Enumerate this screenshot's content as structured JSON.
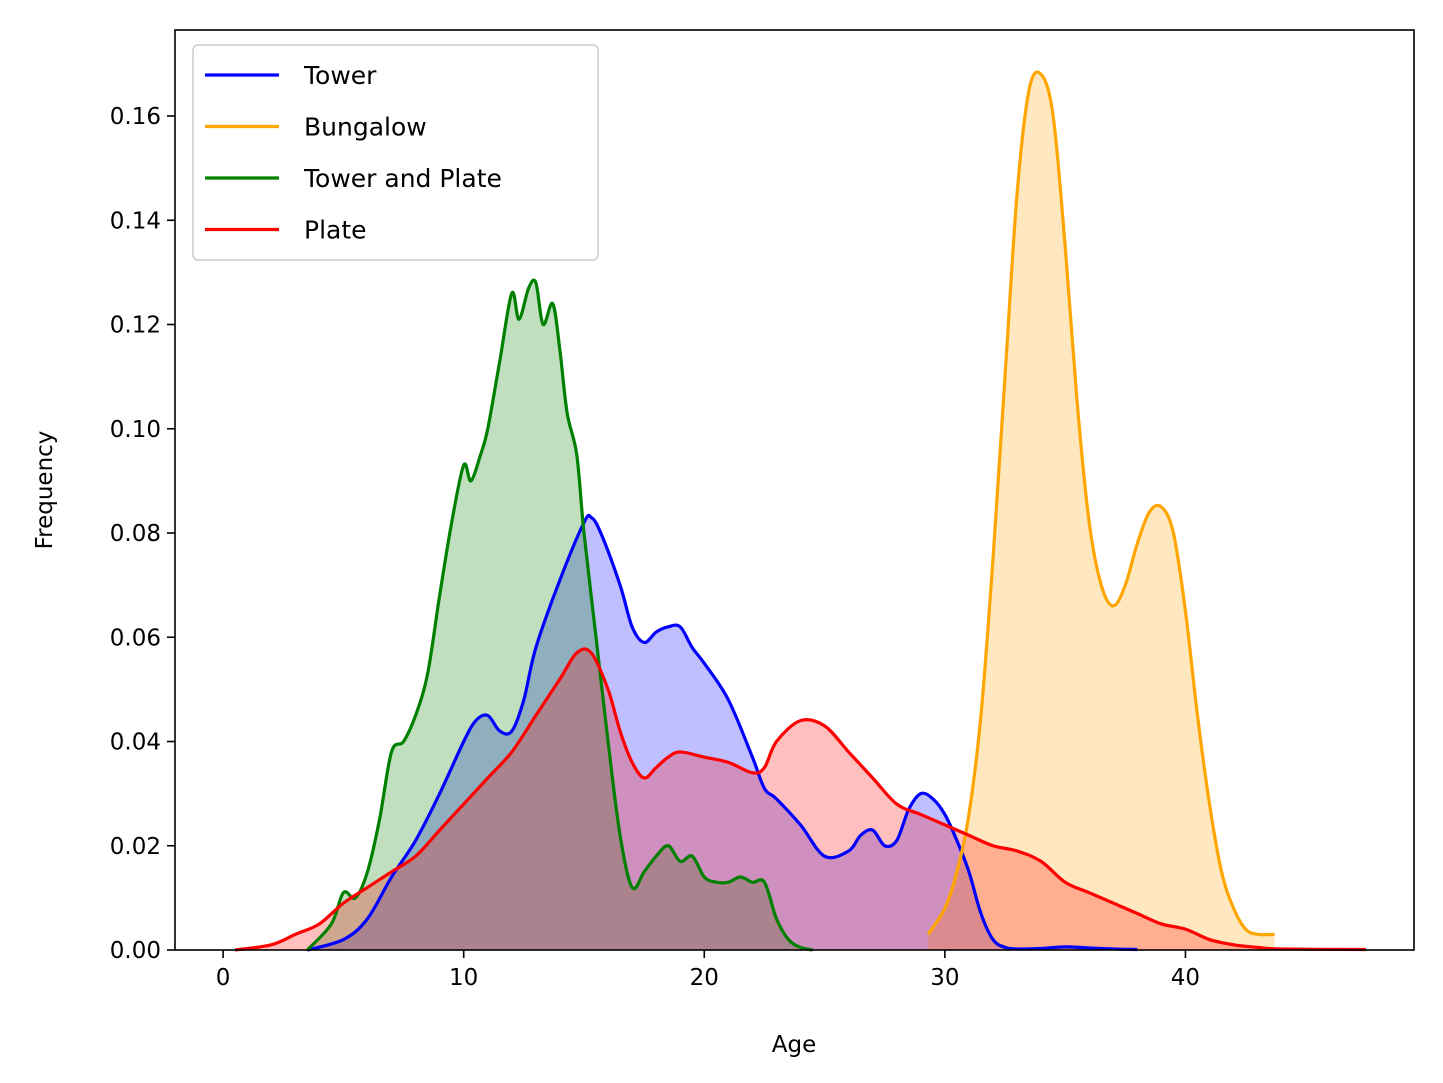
{
  "chart_data": {
    "type": "area",
    "title": "",
    "xlabel": "Age",
    "ylabel": "Frequency",
    "xlim": [
      -2,
      49.5
    ],
    "ylim": [
      0,
      0.1765
    ],
    "x_ticks": [
      0,
      10,
      20,
      30,
      40
    ],
    "y_ticks": [
      0.0,
      0.02,
      0.04,
      0.06,
      0.08,
      0.1,
      0.12,
      0.14,
      0.16
    ],
    "x_tick_labels": [
      "0",
      "10",
      "20",
      "30",
      "40"
    ],
    "y_tick_labels": [
      "0.00",
      "0.02",
      "0.04",
      "0.06",
      "0.08",
      "0.10",
      "0.12",
      "0.14",
      "0.16"
    ],
    "grid": false,
    "legend_position": "upper-left",
    "series": [
      {
        "name": "Tower",
        "color": "#0000ff",
        "fill_opacity": 0.25,
        "x": [
          3.5,
          5,
          6,
          7,
          8,
          9,
          10,
          10.5,
          11,
          11.5,
          12,
          12.5,
          13,
          14,
          15,
          15.3,
          15.7,
          16.5,
          17,
          17.5,
          18,
          18.5,
          19,
          19.5,
          20,
          21,
          22,
          22.5,
          23,
          24,
          25,
          26,
          26.5,
          27,
          27.5,
          28,
          28.5,
          29,
          29.5,
          30,
          30.5,
          31,
          31.5,
          32,
          32.5,
          33,
          34,
          35,
          36,
          37,
          38
        ],
        "y": [
          0.0,
          0.002,
          0.006,
          0.014,
          0.021,
          0.03,
          0.04,
          0.044,
          0.045,
          0.042,
          0.042,
          0.048,
          0.058,
          0.071,
          0.082,
          0.083,
          0.08,
          0.07,
          0.062,
          0.059,
          0.061,
          0.062,
          0.062,
          0.058,
          0.055,
          0.048,
          0.037,
          0.031,
          0.029,
          0.024,
          0.018,
          0.019,
          0.022,
          0.023,
          0.02,
          0.021,
          0.027,
          0.03,
          0.029,
          0.026,
          0.021,
          0.015,
          0.007,
          0.002,
          0.0005,
          0.0002,
          0.0003,
          0.0006,
          0.0004,
          0.0002,
          0.0001
        ]
      },
      {
        "name": "Bungalow",
        "color": "#ffa500",
        "fill_opacity": 0.25,
        "x": [
          29.3,
          30,
          30.5,
          31,
          31.5,
          32,
          32.5,
          33,
          33.5,
          34,
          34.5,
          35,
          35.5,
          36,
          36.5,
          37,
          37.5,
          38,
          38.5,
          39,
          39.5,
          40,
          40.5,
          41,
          41.5,
          42,
          42.5,
          43,
          43.7
        ],
        "y": [
          0.003,
          0.008,
          0.015,
          0.026,
          0.045,
          0.075,
          0.11,
          0.145,
          0.165,
          0.168,
          0.16,
          0.135,
          0.105,
          0.082,
          0.07,
          0.066,
          0.07,
          0.078,
          0.084,
          0.085,
          0.08,
          0.065,
          0.045,
          0.028,
          0.015,
          0.008,
          0.004,
          0.003,
          0.003
        ]
      },
      {
        "name": "Tower and Plate",
        "color": "#008000",
        "fill_opacity": 0.25,
        "x": [
          3.5,
          4.5,
          5,
          5.5,
          6,
          6.5,
          7,
          7.5,
          8,
          8.5,
          9,
          9.5,
          10,
          10.3,
          10.7,
          11,
          11.5,
          12,
          12.3,
          12.7,
          13,
          13.3,
          13.7,
          14,
          14.3,
          14.7,
          15,
          15.5,
          16,
          16.5,
          17,
          17.5,
          18,
          18.5,
          19,
          19.5,
          20,
          20.5,
          21,
          21.5,
          22,
          22.5,
          23,
          23.5,
          24,
          24.5
        ],
        "y": [
          0.0,
          0.005,
          0.011,
          0.01,
          0.015,
          0.025,
          0.038,
          0.04,
          0.045,
          0.053,
          0.068,
          0.082,
          0.093,
          0.09,
          0.095,
          0.1,
          0.113,
          0.126,
          0.121,
          0.127,
          0.128,
          0.12,
          0.124,
          0.115,
          0.103,
          0.095,
          0.08,
          0.06,
          0.04,
          0.022,
          0.012,
          0.015,
          0.018,
          0.02,
          0.017,
          0.018,
          0.014,
          0.013,
          0.013,
          0.014,
          0.013,
          0.013,
          0.006,
          0.002,
          0.0005,
          0.0
        ]
      },
      {
        "name": "Plate",
        "color": "#ff0000",
        "fill_opacity": 0.25,
        "x": [
          0.5,
          2,
          3,
          4,
          5,
          6,
          7,
          8,
          9,
          10,
          11,
          12,
          13,
          14,
          14.7,
          15.3,
          16,
          16.5,
          17,
          17.5,
          18,
          18.5,
          19,
          20,
          21,
          22,
          22.5,
          23,
          24,
          25,
          26,
          27,
          28,
          29,
          30,
          31,
          32,
          33,
          34,
          35,
          36,
          37,
          38,
          39,
          40,
          41,
          42,
          43,
          44,
          47.5
        ],
        "y": [
          0.0,
          0.001,
          0.003,
          0.005,
          0.009,
          0.012,
          0.015,
          0.018,
          0.023,
          0.028,
          0.033,
          0.038,
          0.045,
          0.052,
          0.057,
          0.057,
          0.05,
          0.042,
          0.036,
          0.033,
          0.035,
          0.037,
          0.038,
          0.037,
          0.036,
          0.034,
          0.035,
          0.04,
          0.044,
          0.043,
          0.038,
          0.033,
          0.028,
          0.026,
          0.024,
          0.022,
          0.02,
          0.019,
          0.017,
          0.013,
          0.011,
          0.009,
          0.007,
          0.005,
          0.004,
          0.002,
          0.001,
          0.0005,
          0.0002,
          0.0001
        ]
      }
    ]
  }
}
